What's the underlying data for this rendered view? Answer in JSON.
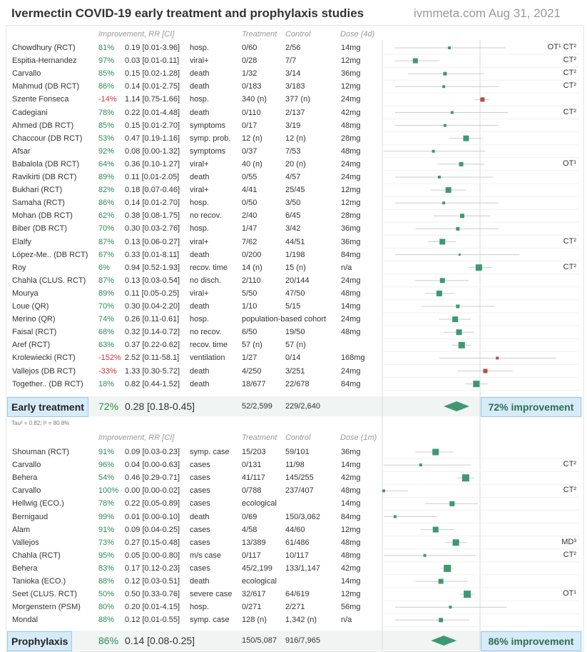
{
  "header": {
    "title": "Ivermectin COVID-19 early treatment and prophylaxis studies",
    "site": "ivmmeta.com Aug 31, 2021"
  },
  "early": {
    "headers": {
      "improvement": "Improvement, RR [CI]",
      "treatment": "Treatment",
      "control": "Control",
      "dose": "Dose (4d)"
    },
    "summary": {
      "label": "Early treatment",
      "imp": "72%",
      "rr": "0.28 [0.18-0.45]",
      "treatment": "52/2,599",
      "control": "229/2,640",
      "improvement_label": "72% improvement",
      "rr_value": 0.28,
      "lo": 0.18,
      "hi": 0.45
    },
    "tau": "Tau² = 0.82; I² = 80.8%"
  },
  "prophylaxis": {
    "headers": {
      "improvement": "Improvement, RR [CI]",
      "treatment": "Treatment",
      "control": "Control",
      "dose": "Dose (1m)"
    },
    "summary": {
      "label": "Prophylaxis",
      "imp": "86%",
      "rr": "0.14 [0.08-0.25]",
      "treatment": "150/5,087",
      "control": "916/7,965",
      "improvement_label": "86% improvement",
      "rr_value": 0.14,
      "lo": 0.08,
      "hi": 0.25
    }
  },
  "chart_data": {
    "type": "forest",
    "reference_value": 1,
    "scale": "log",
    "early": [
      {
        "name": "Chowdhury (RCT)",
        "imp": "81%",
        "rr_text": "0.19 [0.01-3.96]",
        "outcome": "hosp.",
        "treatment": "0/60",
        "control": "2/56",
        "dose": "14mg",
        "rr": 0.19,
        "lo": 0.01,
        "hi": 3.96,
        "tag": "OT¹ CT²",
        "w": 4
      },
      {
        "name": "Espitia-Hernandez",
        "imp": "97%",
        "rr_text": "0.03 [0.01-0.11]",
        "outcome": "viral+",
        "treatment": "0/28",
        "control": "7/7",
        "dose": "12mg",
        "rr": 0.03,
        "lo": 0.01,
        "hi": 0.11,
        "tag": "CT²",
        "w": 7
      },
      {
        "name": "Carvallo",
        "imp": "85%",
        "rr_text": "0.15 [0.02-1.28]",
        "outcome": "death",
        "treatment": "1/32",
        "control": "3/14",
        "dose": "36mg",
        "rr": 0.15,
        "lo": 0.02,
        "hi": 1.28,
        "tag": "CT²",
        "w": 5
      },
      {
        "name": "Mahmud (DB RCT)",
        "imp": "86%",
        "rr_text": "0.14 [0.01-2.75]",
        "outcome": "death",
        "treatment": "0/183",
        "control": "3/183",
        "dose": "12mg",
        "rr": 0.14,
        "lo": 0.01,
        "hi": 2.75,
        "tag": "CT²",
        "w": 4
      },
      {
        "name": "Szente Fonseca",
        "imp": "-14%",
        "neg": true,
        "rr_text": "1.14 [0.75-1.66]",
        "outcome": "hosp.",
        "treatment": "340 (n)",
        "control": "377 (n)",
        "dose": "24mg",
        "rr": 1.14,
        "lo": 0.75,
        "hi": 1.66,
        "tag": "",
        "w": 6,
        "red": true
      },
      {
        "name": "Cadegiani",
        "imp": "78%",
        "rr_text": "0.22 [0.01-4.48]",
        "outcome": "death",
        "treatment": "0/110",
        "control": "2/137",
        "dose": "42mg",
        "rr": 0.22,
        "lo": 0.01,
        "hi": 4.48,
        "tag": "CT²",
        "w": 4
      },
      {
        "name": "Ahmed (DB RCT)",
        "imp": "85%",
        "rr_text": "0.15 [0.01-2.70]",
        "outcome": "symptoms",
        "treatment": "0/17",
        "control": "3/19",
        "dose": "48mg",
        "rr": 0.15,
        "lo": 0.01,
        "hi": 2.7,
        "tag": "",
        "w": 4
      },
      {
        "name": "Chaccour (DB RCT)",
        "imp": "53%",
        "rr_text": "0.47 [0.19-1.16]",
        "outcome": "symp. prob.",
        "treatment": "12 (n)",
        "control": "12 (n)",
        "dose": "28mg",
        "rr": 0.47,
        "lo": 0.19,
        "hi": 1.16,
        "tag": "",
        "w": 8
      },
      {
        "name": "Afsar",
        "imp": "92%",
        "rr_text": "0.08 [0.00-1.32]",
        "outcome": "symptoms",
        "treatment": "0/37",
        "control": "7/53",
        "dose": "48mg",
        "rr": 0.08,
        "lo": 0.0,
        "hi": 1.32,
        "tag": "",
        "w": 4
      },
      {
        "name": "Babalola (DB RCT)",
        "imp": "64%",
        "rr_text": "0.36 [0.10-1.27]",
        "outcome": "viral+",
        "treatment": "40 (n)",
        "control": "20 (n)",
        "dose": "24mg",
        "rr": 0.36,
        "lo": 0.1,
        "hi": 1.27,
        "tag": "OT¹",
        "w": 6
      },
      {
        "name": "Ravikirti (DB RCT)",
        "imp": "89%",
        "rr_text": "0.11 [0.01-2.05]",
        "outcome": "death",
        "treatment": "0/55",
        "control": "4/57",
        "dose": "24mg",
        "rr": 0.11,
        "lo": 0.01,
        "hi": 2.05,
        "tag": "",
        "w": 4
      },
      {
        "name": "Bukhari (RCT)",
        "imp": "82%",
        "rr_text": "0.18 [0.07-0.46]",
        "outcome": "viral+",
        "treatment": "4/41",
        "control": "25/45",
        "dose": "12mg",
        "rr": 0.18,
        "lo": 0.07,
        "hi": 0.46,
        "tag": "",
        "w": 8
      },
      {
        "name": "Samaha (RCT)",
        "imp": "86%",
        "rr_text": "0.14 [0.01-2.70]",
        "outcome": "hosp.",
        "treatment": "0/50",
        "control": "3/50",
        "dose": "12mg",
        "rr": 0.14,
        "lo": 0.01,
        "hi": 2.7,
        "tag": "",
        "w": 4
      },
      {
        "name": "Mohan (DB RCT)",
        "imp": "62%",
        "rr_text": "0.38 [0.08-1.75]",
        "outcome": "no recov.",
        "treatment": "2/40",
        "control": "6/45",
        "dose": "28mg",
        "rr": 0.38,
        "lo": 0.08,
        "hi": 1.75,
        "tag": "",
        "w": 6
      },
      {
        "name": "Biber (DB RCT)",
        "imp": "70%",
        "rr_text": "0.30 [0.03-2.76]",
        "outcome": "hosp.",
        "treatment": "1/47",
        "control": "3/42",
        "dose": "36mg",
        "rr": 0.3,
        "lo": 0.03,
        "hi": 2.76,
        "tag": "",
        "w": 5
      },
      {
        "name": "Elalfy",
        "imp": "87%",
        "rr_text": "0.13 [0.06-0.27]",
        "outcome": "viral+",
        "treatment": "7/62",
        "control": "44/51",
        "dose": "36mg",
        "rr": 0.13,
        "lo": 0.06,
        "hi": 0.27,
        "tag": "CT²",
        "w": 8
      },
      {
        "name": "López-Me.. (DB RCT)",
        "imp": "67%",
        "rr_text": "0.33 [0.01-8.11]",
        "outcome": "death",
        "treatment": "0/200",
        "control": "1/198",
        "dose": "84mg",
        "rr": 0.33,
        "lo": 0.01,
        "hi": 8.11,
        "tag": "",
        "w": 3
      },
      {
        "name": "Roy",
        "imp": "6%",
        "rr_text": "0.94 [0.52-1.93]",
        "outcome": "recov. time",
        "treatment": "14 (n)",
        "control": "15 (n)",
        "dose": "n/a",
        "rr": 0.94,
        "lo": 0.52,
        "hi": 1.93,
        "tag": "CT²",
        "w": 9
      },
      {
        "name": "Chahla (CLUS. RCT)",
        "imp": "87%",
        "rr_text": "0.13 [0.03-0.54]",
        "outcome": "no disch.",
        "treatment": "2/110",
        "control": "20/144",
        "dose": "24mg",
        "rr": 0.13,
        "lo": 0.03,
        "hi": 0.54,
        "tag": "",
        "w": 7
      },
      {
        "name": "Mourya",
        "imp": "89%",
        "rr_text": "0.11 [0.05-0.25]",
        "outcome": "viral+",
        "treatment": "5/50",
        "control": "47/50",
        "dose": "48mg",
        "rr": 0.11,
        "lo": 0.05,
        "hi": 0.25,
        "tag": "",
        "w": 8
      },
      {
        "name": "Loue (QR)",
        "imp": "70%",
        "rr_text": "0.30 [0.04-2.20]",
        "outcome": "death",
        "treatment": "1/10",
        "control": "5/15",
        "dose": "14mg",
        "rr": 0.3,
        "lo": 0.04,
        "hi": 2.2,
        "tag": "",
        "w": 5
      },
      {
        "name": "Merino (QR)",
        "imp": "74%",
        "rr_text": "0.26 [0.11-0.61]",
        "outcome": "hosp.",
        "treatment": "population-based cohort",
        "control": "",
        "dose": "24mg",
        "rr": 0.26,
        "lo": 0.11,
        "hi": 0.61,
        "tag": "",
        "w": 8
      },
      {
        "name": "Faisal (RCT)",
        "imp": "68%",
        "rr_text": "0.32 [0.14-0.72]",
        "outcome": "no recov.",
        "treatment": "6/50",
        "control": "19/50",
        "dose": "48mg",
        "rr": 0.32,
        "lo": 0.14,
        "hi": 0.72,
        "tag": "",
        "w": 8
      },
      {
        "name": "Aref (RCT)",
        "imp": "63%",
        "rr_text": "0.37 [0.22-0.62]",
        "outcome": "recov. time",
        "treatment": "57 (n)",
        "control": "57 (n)",
        "dose": "",
        "rr": 0.37,
        "lo": 0.22,
        "hi": 0.62,
        "tag": "",
        "w": 9
      },
      {
        "name": "Krolewiecki (RCT)",
        "imp": "-152%",
        "neg": true,
        "rr_text": "2.52 [0.11-58.1]",
        "outcome": "ventilation",
        "treatment": "1/27",
        "control": "0/14",
        "dose": "168mg",
        "rr": 2.52,
        "lo": 0.11,
        "hi": 58.1,
        "tag": "",
        "w": 4,
        "red": true
      },
      {
        "name": "Vallejos (DB RCT)",
        "imp": "-33%",
        "neg": true,
        "rr_text": "1.33 [0.30-5.72]",
        "outcome": "death",
        "treatment": "4/250",
        "control": "3/251",
        "dose": "24mg",
        "rr": 1.33,
        "lo": 0.3,
        "hi": 5.72,
        "tag": "",
        "w": 6,
        "red": true
      },
      {
        "name": "Together.. (DB RCT)",
        "imp": "18%",
        "rr_text": "0.82 [0.44-1.52]",
        "outcome": "death",
        "treatment": "18/677",
        "control": "22/678",
        "dose": "84mg",
        "rr": 0.82,
        "lo": 0.44,
        "hi": 1.52,
        "tag": "",
        "w": 9
      }
    ],
    "prophylaxis": [
      {
        "name": "Shouman (RCT)",
        "imp": "91%",
        "rr_text": "0.09 [0.03-0.23]",
        "outcome": "symp. case",
        "treatment": "15/203",
        "control": "59/101",
        "dose": "36mg",
        "rr": 0.09,
        "lo": 0.03,
        "hi": 0.23,
        "tag": "",
        "w": 9
      },
      {
        "name": "Carvallo",
        "imp": "96%",
        "rr_text": "0.04 [0.00-0.63]",
        "outcome": "cases",
        "treatment": "0/131",
        "control": "11/98",
        "dose": "14mg",
        "rr": 0.04,
        "lo": 0.0,
        "hi": 0.63,
        "tag": "CT²",
        "w": 4
      },
      {
        "name": "Behera",
        "imp": "54%",
        "rr_text": "0.46 [0.29-0.71]",
        "outcome": "cases",
        "treatment": "41/117",
        "control": "145/255",
        "dose": "42mg",
        "rr": 0.46,
        "lo": 0.29,
        "hi": 0.71,
        "tag": "",
        "w": 10
      },
      {
        "name": "Carvallo",
        "imp": "100%",
        "rr_text": "0.00 [0.00-0.02]",
        "outcome": "cases",
        "treatment": "0/788",
        "control": "237/407",
        "dose": "48mg",
        "rr": 0.0,
        "lo": 0.0,
        "hi": 0.02,
        "tag": "CT²",
        "w": 4
      },
      {
        "name": "Hellwig (ECO.)",
        "imp": "78%",
        "rr_text": "0.22 [0.05-0.89]",
        "outcome": "cases",
        "treatment": "ecological",
        "control": "",
        "dose": "14mg",
        "rr": 0.22,
        "lo": 0.05,
        "hi": 0.89,
        "tag": "",
        "w": 7
      },
      {
        "name": "Bernigaud",
        "imp": "99%",
        "rr_text": "0.01 [0.00-0.10]",
        "outcome": "death",
        "treatment": "0/69",
        "control": "150/3,062",
        "dose": "84mg",
        "rr": 0.01,
        "lo": 0.0,
        "hi": 0.1,
        "tag": "",
        "w": 4
      },
      {
        "name": "Alam",
        "imp": "91%",
        "rr_text": "0.09 [0.04-0.25]",
        "outcome": "cases",
        "treatment": "4/58",
        "control": "44/60",
        "dose": "12mg",
        "rr": 0.09,
        "lo": 0.04,
        "hi": 0.25,
        "tag": "",
        "w": 8
      },
      {
        "name": "Vallejos",
        "imp": "73%",
        "rr_text": "0.27 [0.15-0.48]",
        "outcome": "cases",
        "treatment": "13/389",
        "control": "61/486",
        "dose": "48mg",
        "rr": 0.27,
        "lo": 0.15,
        "hi": 0.48,
        "tag": "MD³",
        "w": 9
      },
      {
        "name": "Chahla (RCT)",
        "imp": "95%",
        "rr_text": "0.05 [0.00-0.80]",
        "outcome": "m/s case",
        "treatment": "0/117",
        "control": "10/117",
        "dose": "48mg",
        "rr": 0.05,
        "lo": 0.0,
        "hi": 0.8,
        "tag": "CT²",
        "w": 4
      },
      {
        "name": "Behera",
        "imp": "83%",
        "rr_text": "0.17 [0.12-0.23]",
        "outcome": "cases",
        "treatment": "45/2,199",
        "control": "133/1,147",
        "dose": "42mg",
        "rr": 0.17,
        "lo": 0.12,
        "hi": 0.23,
        "tag": "",
        "w": 10
      },
      {
        "name": "Tanioka (ECO.)",
        "imp": "88%",
        "rr_text": "0.12 [0.03-0.51]",
        "outcome": "death",
        "treatment": "ecological",
        "control": "",
        "dose": "14mg",
        "rr": 0.12,
        "lo": 0.03,
        "hi": 0.51,
        "tag": "",
        "w": 7
      },
      {
        "name": "Seet (CLUS. RCT)",
        "imp": "50%",
        "rr_text": "0.50 [0.33-0.76]",
        "outcome": "severe case",
        "treatment": "32/617",
        "control": "64/619",
        "dose": "12mg",
        "rr": 0.5,
        "lo": 0.33,
        "hi": 0.76,
        "tag": "OT¹",
        "w": 10
      },
      {
        "name": "Morgenstern (PSM)",
        "imp": "80%",
        "rr_text": "0.20 [0.01-4.15]",
        "outcome": "hosp.",
        "treatment": "0/271",
        "control": "2/271",
        "dose": "56mg",
        "rr": 0.2,
        "lo": 0.01,
        "hi": 4.15,
        "tag": "",
        "w": 4
      },
      {
        "name": "Mondal",
        "imp": "88%",
        "rr_text": "0.12 [0.01-0.55]",
        "outcome": "symp. case",
        "treatment": "128 (n)",
        "control": "1,342 (n)",
        "dose": "n/a",
        "rr": 0.12,
        "lo": 0.01,
        "hi": 0.55,
        "tag": "",
        "w": 6
      }
    ],
    "colors": {
      "favor": "#3d9970",
      "against": "#b94a48",
      "ci_line": "#cccccc",
      "summary": "#3d9970"
    }
  }
}
